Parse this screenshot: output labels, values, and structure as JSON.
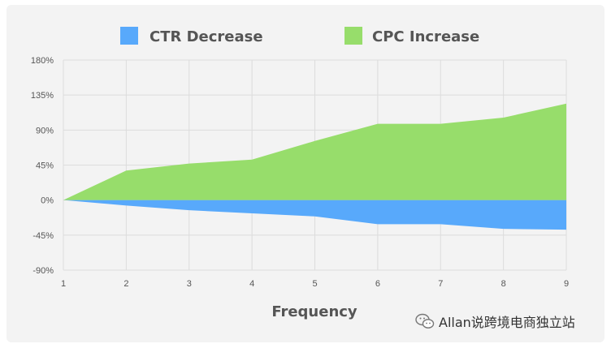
{
  "chart_data": {
    "type": "area",
    "x": [
      1,
      2,
      3,
      4,
      5,
      6,
      7,
      8,
      9
    ],
    "series": [
      {
        "name": "CTR Decrease",
        "color": "#58a9fb",
        "values": [
          0,
          -7,
          -13,
          -17,
          -21,
          -31,
          -31,
          -37,
          -38
        ]
      },
      {
        "name": "CPC Increase",
        "color": "#97dd6b",
        "values": [
          0,
          38,
          47,
          52,
          76,
          98,
          98,
          106,
          124
        ]
      }
    ],
    "ylim": [
      -90,
      180
    ],
    "yticks": [
      -90,
      -45,
      0,
      45,
      90,
      135,
      180
    ],
    "ytick_labels": [
      "-90%",
      "-45%",
      "0%",
      "45%",
      "90%",
      "135%",
      "180%"
    ],
    "xticks": [
      1,
      2,
      3,
      4,
      5,
      6,
      7,
      8,
      9
    ],
    "xtick_labels": [
      "1",
      "2",
      "3",
      "4",
      "5",
      "6",
      "7",
      "8",
      "9"
    ],
    "xlabel": "Frequency",
    "title": "",
    "grid": true,
    "legend_position": "top"
  },
  "watermark": {
    "text": "Allan说跨境电商独立站",
    "icon": "wechat-icon"
  }
}
